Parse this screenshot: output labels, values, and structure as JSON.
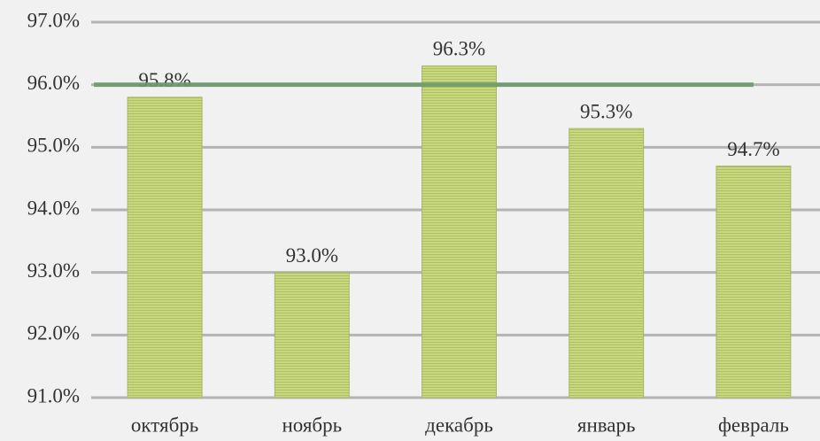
{
  "chart_data": {
    "type": "bar",
    "categories": [
      "октябрь",
      "ноябрь",
      "декабрь",
      "январь",
      "февраль"
    ],
    "values": [
      95.8,
      93.0,
      96.3,
      95.3,
      94.7
    ],
    "value_labels": [
      "95.8%",
      "93.0%",
      "96.3%",
      "95.3%",
      "94.7%"
    ],
    "color": "#c8d87e",
    "ylim": [
      91,
      97
    ],
    "yticks": [
      {
        "value": 91,
        "label": "91.0%"
      },
      {
        "value": 92,
        "label": "92.0%"
      },
      {
        "value": 93,
        "label": "93.0%"
      },
      {
        "value": 94,
        "label": "94.0%"
      },
      {
        "value": 95,
        "label": "95.0%"
      },
      {
        "value": 96,
        "label": "96.0%"
      },
      {
        "value": 97,
        "label": "97.0%"
      }
    ],
    "grid": true,
    "target_line": {
      "color": "#6a9a6c",
      "values": [
        96,
        96,
        96,
        96,
        96
      ]
    }
  }
}
